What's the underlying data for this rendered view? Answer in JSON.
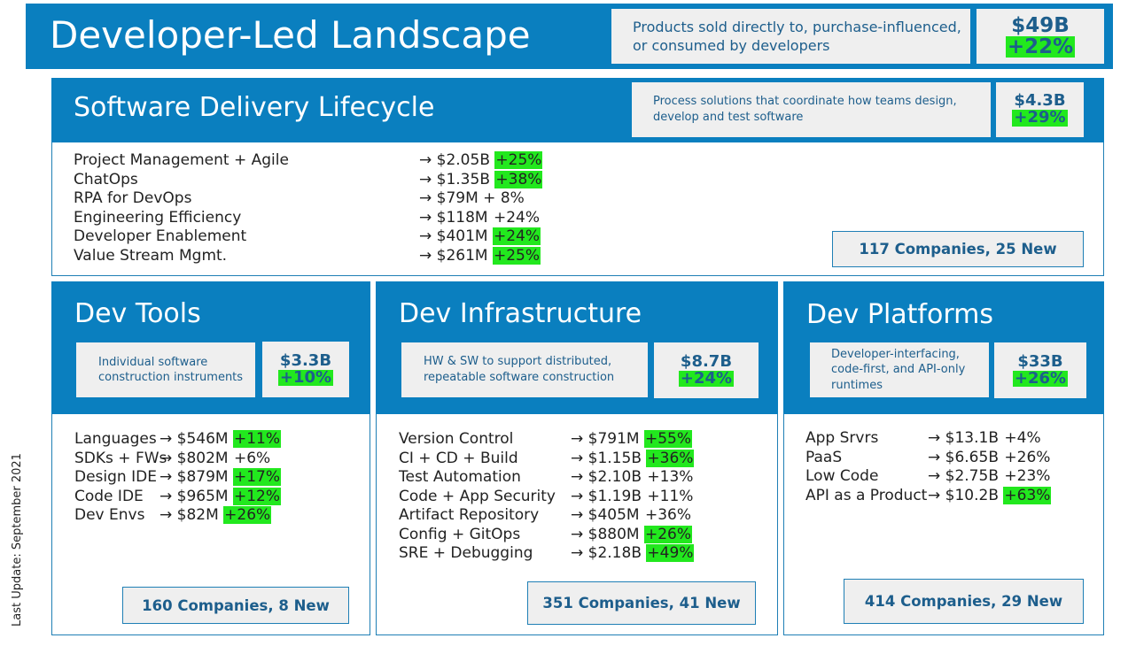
{
  "header": {
    "title": "Developer-Led Landscape",
    "description": "Products sold directly to, purchase-influenced, or consumed by developers",
    "value": "$49B",
    "growth": "+22%"
  },
  "sdl": {
    "title": "Software Delivery Lifecycle",
    "description": "Process solutions that coordinate how teams design, develop and test software",
    "value": "$4.3B",
    "growth": "+29%",
    "companies": "117 Companies, 25 New",
    "items": [
      {
        "label": "Project Management + Agile",
        "amount": "→ $2.05B ",
        "pct": "+25%",
        "hl": true
      },
      {
        "label": "ChatOps",
        "amount": "→ $1.35B ",
        "pct": "+38%",
        "hl": true
      },
      {
        "label": "RPA for DevOps",
        "amount": "→ $79M + 8%",
        "pct": "",
        "hl": false
      },
      {
        "label": "Engineering Efficiency",
        "amount": "→ $118M ",
        "pct": "+24%",
        "hl": false
      },
      {
        "label": "Developer Enablement",
        "amount": "→ $401M ",
        "pct": "+24%",
        "hl": true
      },
      {
        "label": "Value Stream Mgmt.",
        "amount": "→ $261M ",
        "pct": "+25%",
        "hl": true
      }
    ]
  },
  "tools": {
    "title": "Dev Tools",
    "description": "Individual software construction instruments",
    "value": "$3.3B",
    "growth": "+10%",
    "companies": "160 Companies, 8 New",
    "items": [
      {
        "label": "Languages",
        "amount": "→ $546M ",
        "pct": "+11%",
        "hl": true
      },
      {
        "label": "SDKs + FWs",
        "amount": "→ $802M ",
        "pct": "+6%",
        "hl": false
      },
      {
        "label": "Design IDE",
        "amount": "→ $879M ",
        "pct": "+17%",
        "hl": true
      },
      {
        "label": "Code IDE",
        "amount": "→ $965M ",
        "pct": "+12%",
        "hl": true
      },
      {
        "label": "Dev Envs",
        "amount": "→ $82M ",
        "pct": "+26%",
        "hl": true
      }
    ]
  },
  "infra": {
    "title": "Dev Infrastructure",
    "description": "HW & SW to support distributed, repeatable software construction",
    "value": "$8.7B",
    "growth": "+24%",
    "companies": "351 Companies, 41 New",
    "items": [
      {
        "label": "Version Control",
        "amount": "→ $791M ",
        "pct": "+55%",
        "hl": true
      },
      {
        "label": "CI + CD + Build",
        "amount": "→ $1.15B ",
        "pct": "+36%",
        "hl": true
      },
      {
        "label": "Test Automation",
        "amount": "→ $2.10B ",
        "pct": "+13%",
        "hl": false
      },
      {
        "label": "Code + App Security",
        "amount": "→ $1.19B ",
        "pct": "+11%",
        "hl": false
      },
      {
        "label": "Artifact Repository",
        "amount": "→ $405M ",
        "pct": "+36%",
        "hl": false
      },
      {
        "label": "Config + GitOps",
        "amount": "→ $880M ",
        "pct": "+26%",
        "hl": true
      },
      {
        "label": "SRE + Debugging",
        "amount": "→ $2.18B ",
        "pct": "+49%",
        "hl": true
      }
    ]
  },
  "platforms": {
    "title": "Dev Platforms",
    "description": "Developer-interfacing, code-first, and API-only runtimes",
    "value": "$33B",
    "growth": "+26%",
    "companies": "414 Companies, 29 New",
    "items": [
      {
        "label": "App Srvrs",
        "amount": "→ $13.1B ",
        "pct": "+4%",
        "hl": false
      },
      {
        "label": "PaaS",
        "amount": "→ $6.65B ",
        "pct": "+26%",
        "hl": false
      },
      {
        "label": "Low Code",
        "amount": "→ $2.75B ",
        "pct": "+23%",
        "hl": false
      },
      {
        "label": "API as a Product",
        "amount": "→ $10.2B ",
        "pct": "+63%",
        "hl": true
      }
    ]
  },
  "footer": {
    "last_update": "Last Update: September 2021"
  }
}
